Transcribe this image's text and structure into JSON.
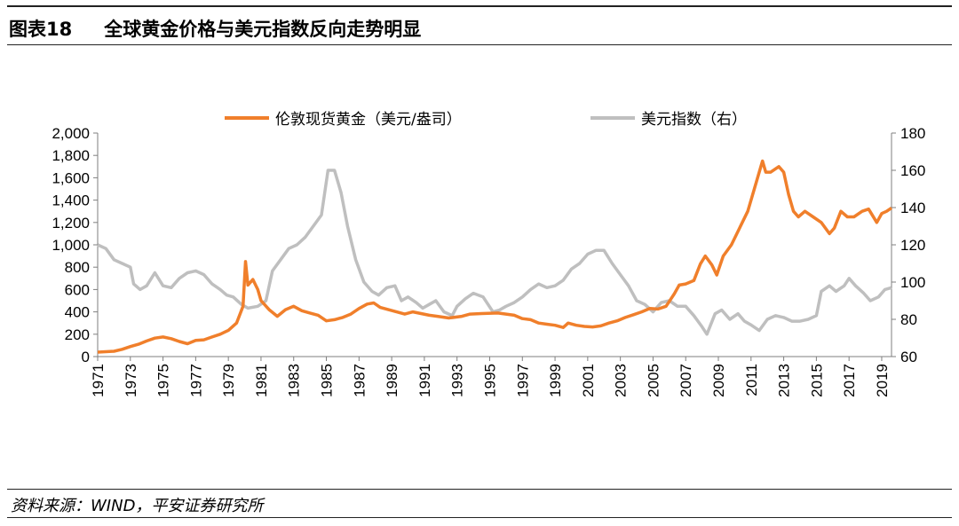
{
  "header": {
    "figure_number": "图表18",
    "title": "全球黄金价格与美元指数反向走势明显"
  },
  "source": "资料来源：WIND，平安证券研究所",
  "colors": {
    "gold": "#F07F2B",
    "usd": "#BFBFBF",
    "axis": "#7F7F7F"
  },
  "chart_data": {
    "type": "line",
    "title": "全球黄金价格与美元指数反向走势明显",
    "legend_position": "top",
    "grid": false,
    "x_ticks": [
      "1971",
      "1973",
      "1975",
      "1977",
      "1979",
      "1981",
      "1983",
      "1985",
      "1987",
      "1989",
      "1991",
      "1993",
      "1995",
      "1997",
      "1999",
      "2001",
      "2003",
      "2005",
      "2007",
      "2009",
      "2011",
      "2013",
      "2015",
      "2017",
      "2019"
    ],
    "xlim": [
      1971,
      2019.6
    ],
    "y_left": {
      "lim": [
        0,
        2000
      ],
      "ticks": [
        "0",
        "200",
        "400",
        "600",
        "800",
        "1,000",
        "1,200",
        "1,400",
        "1,600",
        "1,800",
        "2,000"
      ]
    },
    "y_right": {
      "lim": [
        60,
        180
      ],
      "ticks": [
        "60",
        "80",
        "100",
        "120",
        "140",
        "160",
        "180"
      ]
    },
    "series": [
      {
        "name": "伦敦现货黄金（美元/盎司）",
        "axis": "left",
        "x": [
          1971.0,
          1972.0,
          1972.5,
          1973.0,
          1973.5,
          1974.0,
          1974.5,
          1975.0,
          1975.5,
          1976.0,
          1976.5,
          1977.0,
          1977.5,
          1978.0,
          1978.5,
          1979.0,
          1979.5,
          1979.9,
          1980.05,
          1980.2,
          1980.5,
          1980.8,
          1981.0,
          1981.5,
          1982.0,
          1982.5,
          1983.0,
          1983.5,
          1984.0,
          1984.5,
          1985.0,
          1985.5,
          1986.0,
          1986.5,
          1987.0,
          1987.5,
          1987.9,
          1988.3,
          1988.8,
          1989.3,
          1989.8,
          1990.3,
          1990.8,
          1991.3,
          1991.8,
          1992.5,
          1993.3,
          1993.8,
          1994.5,
          1995.5,
          1996.0,
          1996.5,
          1997.0,
          1997.5,
          1998.0,
          1998.5,
          1999.0,
          1999.5,
          1999.8,
          2000.3,
          2000.8,
          2001.3,
          2001.8,
          2002.3,
          2002.8,
          2003.3,
          2003.8,
          2004.3,
          2004.8,
          2005.3,
          2005.8,
          2006.3,
          2006.6,
          2007.0,
          2007.5,
          2007.9,
          2008.2,
          2008.6,
          2008.9,
          2009.3,
          2009.8,
          2010.3,
          2010.8,
          2011.2,
          2011.7,
          2011.9,
          2012.2,
          2012.7,
          2013.0,
          2013.3,
          2013.6,
          2013.9,
          2014.3,
          2014.8,
          2015.3,
          2015.8,
          2016.1,
          2016.5,
          2016.9,
          2017.3,
          2017.8,
          2018.2,
          2018.7,
          2019.0,
          2019.3,
          2019.6
        ],
        "values": [
          40,
          48,
          65,
          90,
          110,
          140,
          165,
          175,
          160,
          135,
          115,
          145,
          150,
          175,
          200,
          235,
          300,
          450,
          850,
          640,
          690,
          600,
          500,
          420,
          360,
          420,
          450,
          410,
          390,
          370,
          320,
          330,
          350,
          380,
          430,
          470,
          480,
          440,
          420,
          400,
          380,
          400,
          385,
          370,
          360,
          345,
          360,
          380,
          385,
          390,
          380,
          370,
          340,
          330,
          300,
          290,
          280,
          260,
          300,
          280,
          270,
          265,
          275,
          300,
          320,
          350,
          375,
          400,
          430,
          425,
          450,
          560,
          640,
          650,
          680,
          830,
          900,
          820,
          730,
          900,
          1000,
          1150,
          1300,
          1500,
          1750,
          1650,
          1650,
          1700,
          1650,
          1450,
          1300,
          1250,
          1300,
          1250,
          1200,
          1100,
          1150,
          1300,
          1250,
          1250,
          1300,
          1320,
          1200,
          1280,
          1300,
          1330
        ]
      },
      {
        "name": "美元指数（右）",
        "axis": "right",
        "x": [
          1971.0,
          1971.5,
          1972.0,
          1972.5,
          1973.0,
          1973.2,
          1973.6,
          1974.0,
          1974.5,
          1975.0,
          1975.5,
          1976.0,
          1976.5,
          1977.0,
          1977.5,
          1978.0,
          1978.5,
          1978.9,
          1979.3,
          1979.8,
          1980.2,
          1980.8,
          1981.3,
          1981.7,
          1982.2,
          1982.7,
          1983.2,
          1983.7,
          1984.2,
          1984.7,
          1985.1,
          1985.5,
          1985.9,
          1986.3,
          1986.8,
          1987.3,
          1987.8,
          1988.2,
          1988.7,
          1989.2,
          1989.6,
          1990.0,
          1990.5,
          1990.9,
          1991.3,
          1991.7,
          1992.2,
          1992.7,
          1993.0,
          1993.5,
          1994.0,
          1994.6,
          1995.2,
          1995.6,
          1996.0,
          1996.5,
          1997.0,
          1997.5,
          1998.0,
          1998.5,
          1999.0,
          1999.5,
          2000.0,
          2000.5,
          2001.0,
          2001.5,
          2002.0,
          2002.5,
          2003.0,
          2003.5,
          2004.0,
          2004.5,
          2005.0,
          2005.5,
          2006.0,
          2006.5,
          2007.0,
          2007.5,
          2008.0,
          2008.3,
          2008.8,
          2009.2,
          2009.7,
          2010.2,
          2010.6,
          2011.0,
          2011.5,
          2012.0,
          2012.5,
          2013.0,
          2013.5,
          2014.0,
          2014.5,
          2015.0,
          2015.3,
          2015.8,
          2016.2,
          2016.7,
          2017.0,
          2017.4,
          2017.9,
          2018.3,
          2018.8,
          2019.2,
          2019.6
        ],
        "values": [
          120,
          118,
          112,
          110,
          108,
          99,
          96,
          98,
          105,
          98,
          97,
          102,
          105,
          106,
          104,
          99,
          96,
          93,
          92,
          88,
          86,
          87,
          90,
          106,
          112,
          118,
          120,
          124,
          130,
          136,
          160,
          160,
          148,
          130,
          112,
          100,
          95,
          93,
          97,
          98,
          90,
          92,
          89,
          86,
          88,
          90,
          84,
          82,
          87,
          91,
          94,
          92,
          84,
          85,
          87,
          89,
          92,
          96,
          99,
          97,
          98,
          101,
          107,
          110,
          115,
          117,
          117,
          110,
          104,
          98,
          90,
          88,
          84,
          89,
          90,
          87,
          87,
          82,
          76,
          72,
          83,
          85,
          80,
          83,
          79,
          77,
          74,
          80,
          82,
          81,
          79,
          79,
          80,
          82,
          95,
          98,
          95,
          98,
          102,
          98,
          94,
          90,
          92,
          96,
          97
        ]
      }
    ]
  }
}
